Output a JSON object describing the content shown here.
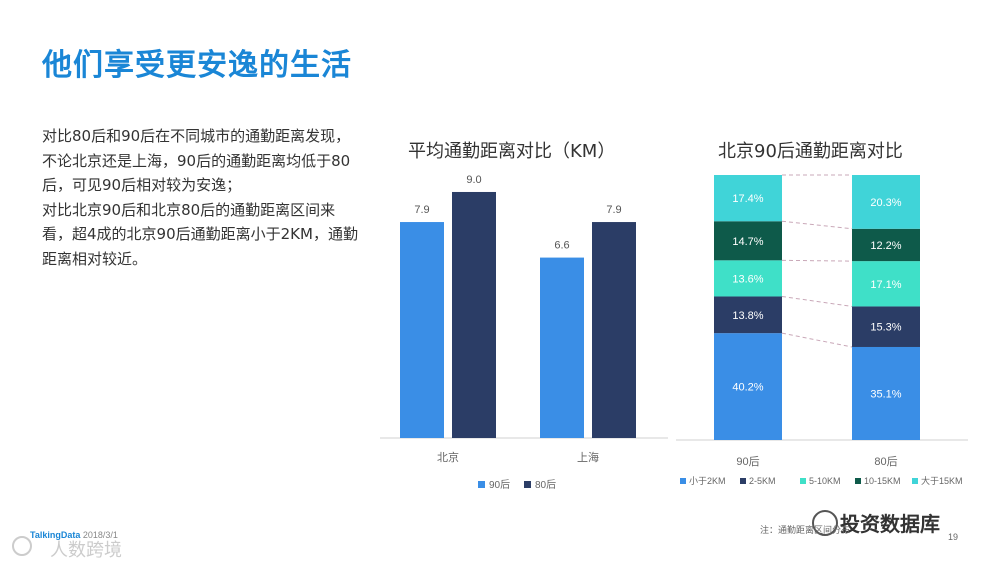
{
  "page": {
    "title": "他们享受更安逸的生活",
    "description": [
      "对比80后和90后在不同城市的通勤距离发现，不论北京还是上海，90后的通勤距离均低于80后，可见90后相对较为安逸；",
      "对比北京90后和北京80后的通勤距离区间来看，超4成的北京90后通勤距离小于2KM，通勤距离相对较近。"
    ],
    "footer": {
      "brand": "TalkingData",
      "date": "2018/3/1",
      "note": "注：通勤距离区间分布",
      "page_number": "19"
    },
    "watermark": "投资数据库",
    "watermark2": "人数跨境"
  },
  "colors": {
    "title": "#1a86d6",
    "series90": "#3a8ee6",
    "series80": "#2b3d66",
    "seg_lt2": "#3a8ee6",
    "seg_2_5": "#2b3d66",
    "seg_5_10": "#3fe0c8",
    "seg_10_15": "#0e5a4a",
    "seg_gt15": "#40d4d8"
  },
  "chart_data": [
    {
      "type": "bar",
      "title": "平均通勤距离对比（KM）",
      "categories": [
        "北京",
        "上海"
      ],
      "series": [
        {
          "name": "90后",
          "values": [
            7.9,
            6.6
          ]
        },
        {
          "name": "80后",
          "values": [
            9.0,
            7.9
          ]
        }
      ],
      "value_labels": [
        [
          "7.9",
          "6.6"
        ],
        [
          "9.0",
          "7.9"
        ]
      ],
      "ylim": [
        0,
        10
      ],
      "grid": false,
      "legend_position": "bottom"
    },
    {
      "type": "bar",
      "stacked": true,
      "percent": true,
      "title": "北京90后通勤距离对比",
      "categories": [
        "90后",
        "80后"
      ],
      "series": [
        {
          "name": "小于2KM",
          "values": [
            40.2,
            35.1
          ]
        },
        {
          "name": "2-5KM",
          "values": [
            13.8,
            15.3
          ]
        },
        {
          "name": "5-10KM",
          "values": [
            13.6,
            17.1
          ]
        },
        {
          "name": "10-15KM",
          "values": [
            14.7,
            12.2
          ]
        },
        {
          "name": "大于15KM",
          "values": [
            17.4,
            20.3
          ]
        }
      ],
      "value_labels": [
        [
          "40.2%",
          "35.1%"
        ],
        [
          "13.8%",
          "15.3%"
        ],
        [
          "13.6%",
          "17.1%"
        ],
        [
          "14.7%",
          "12.2%"
        ],
        [
          "17.4%",
          "20.3%"
        ]
      ],
      "ylim": [
        0,
        100
      ],
      "grid": false,
      "legend_position": "bottom"
    }
  ]
}
